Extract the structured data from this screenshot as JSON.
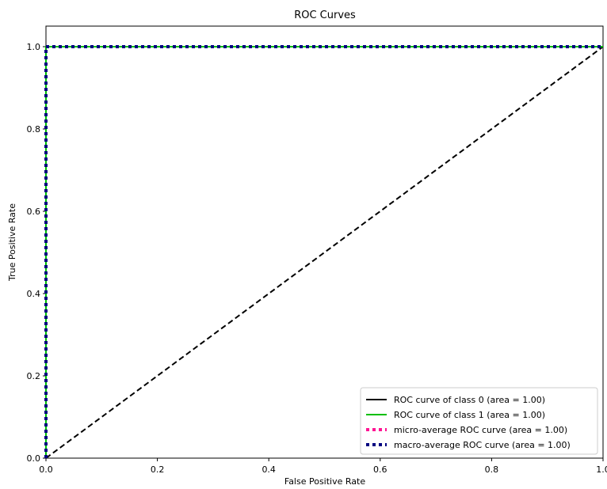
{
  "chart_data": {
    "type": "line",
    "title": "ROC Curves",
    "xlabel": "False Positive Rate",
    "ylabel": "True Positive Rate",
    "xlim": [
      0.0,
      1.0
    ],
    "ylim": [
      0.0,
      1.05
    ],
    "xticks": [
      0.0,
      0.2,
      0.4,
      0.6,
      0.8,
      1.0
    ],
    "xtick_labels": [
      "0.0",
      "0.2",
      "0.4",
      "0.6",
      "0.8",
      "1.0"
    ],
    "yticks": [
      0.0,
      0.2,
      0.4,
      0.6,
      0.8,
      1.0
    ],
    "ytick_labels": [
      "0.0",
      "0.2",
      "0.4",
      "0.6",
      "0.8",
      "1.0"
    ],
    "grid": false,
    "legend_position": "lower-right",
    "series": [
      {
        "name": "ROC curve of class 0 (area = 1.00)",
        "color": "#000000",
        "style": "solid",
        "x": [
          0.0,
          0.0,
          1.0
        ],
        "y": [
          0.0,
          1.0,
          1.0
        ]
      },
      {
        "name": "ROC curve of class 1 (area = 1.00)",
        "color": "#00bf00",
        "style": "solid",
        "x": [
          0.0,
          0.0,
          1.0
        ],
        "y": [
          0.0,
          1.0,
          1.0
        ]
      },
      {
        "name": "micro-average ROC curve (area = 1.00)",
        "color": "#ff1493",
        "style": "dotted",
        "x": [
          0.0,
          0.0,
          1.0
        ],
        "y": [
          0.0,
          1.0,
          1.0
        ]
      },
      {
        "name": "macro-average ROC curve (area = 1.00)",
        "color": "#000080",
        "style": "dotted",
        "x": [
          0.0,
          0.0,
          1.0
        ],
        "y": [
          0.0,
          1.0,
          1.0
        ]
      }
    ],
    "reference_line": {
      "color": "#000000",
      "style": "dashed",
      "x": [
        0.0,
        1.0
      ],
      "y": [
        0.0,
        1.0
      ]
    }
  }
}
